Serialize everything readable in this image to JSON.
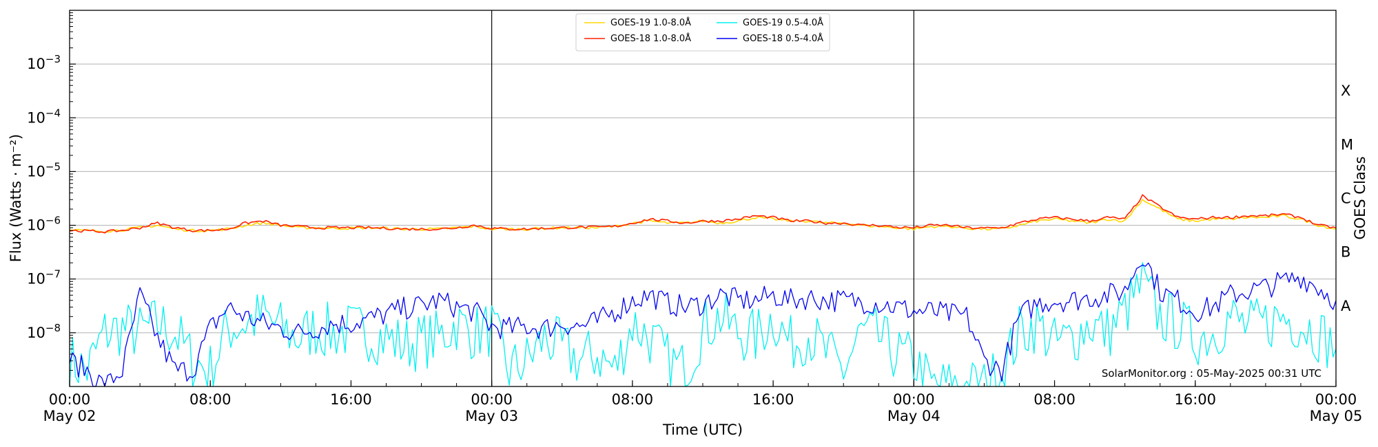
{
  "chart_data": {
    "type": "line",
    "xlabel": "Time (UTC)",
    "ylabel": "Flux (Watts · m⁻²)",
    "ylabel_right": "GOES Class",
    "yscale": "log",
    "ylim": [
      1e-09,
      0.01
    ],
    "xlim": [
      "2025-05-02 00:00",
      "2025-05-05 00:00"
    ],
    "grid": "horizontal at decades",
    "legend_position": "top-center",
    "y_ticks": [
      {
        "value": 1e-08,
        "base": "10",
        "exp": "−8"
      },
      {
        "value": 1e-07,
        "base": "10",
        "exp": "−7"
      },
      {
        "value": 1e-06,
        "base": "10",
        "exp": "−6"
      },
      {
        "value": 1e-05,
        "base": "10",
        "exp": "−5"
      },
      {
        "value": 0.0001,
        "base": "10",
        "exp": "−4"
      },
      {
        "value": 0.001,
        "base": "10",
        "exp": "−3"
      }
    ],
    "x_ticks": [
      {
        "t": "2025-05-02 00:00",
        "time": "00:00",
        "day": "May 02"
      },
      {
        "t": "2025-05-02 08:00",
        "time": "08:00",
        "day": ""
      },
      {
        "t": "2025-05-02 16:00",
        "time": "16:00",
        "day": ""
      },
      {
        "t": "2025-05-03 00:00",
        "time": "00:00",
        "day": "May 03"
      },
      {
        "t": "2025-05-03 08:00",
        "time": "08:00",
        "day": ""
      },
      {
        "t": "2025-05-03 16:00",
        "time": "16:00",
        "day": ""
      },
      {
        "t": "2025-05-04 00:00",
        "time": "00:00",
        "day": "May 04"
      },
      {
        "t": "2025-05-04 08:00",
        "time": "08:00",
        "day": ""
      },
      {
        "t": "2025-05-04 16:00",
        "time": "16:00",
        "day": ""
      },
      {
        "t": "2025-05-05 00:00",
        "time": "00:00",
        "day": "May 05"
      }
    ],
    "day_boundaries": [
      "2025-05-03 00:00",
      "2025-05-04 00:00"
    ],
    "goes_classes": [
      {
        "label": "A",
        "value": 3.16e-08
      },
      {
        "label": "B",
        "value": 3.16e-07
      },
      {
        "label": "C",
        "value": 3.16e-06
      },
      {
        "label": "M",
        "value": 3.16e-05
      },
      {
        "label": "X",
        "value": 0.000316
      }
    ],
    "x": [
      "2025-05-02 00:00",
      "2025-05-02 01:00",
      "2025-05-02 02:00",
      "2025-05-02 03:00",
      "2025-05-02 04:00",
      "2025-05-02 05:00",
      "2025-05-02 06:00",
      "2025-05-02 07:00",
      "2025-05-02 08:00",
      "2025-05-02 09:00",
      "2025-05-02 10:00",
      "2025-05-02 11:00",
      "2025-05-02 12:00",
      "2025-05-02 13:00",
      "2025-05-02 14:00",
      "2025-05-02 15:00",
      "2025-05-02 16:00",
      "2025-05-02 17:00",
      "2025-05-02 18:00",
      "2025-05-02 19:00",
      "2025-05-02 20:00",
      "2025-05-02 21:00",
      "2025-05-02 22:00",
      "2025-05-02 23:00",
      "2025-05-03 00:00",
      "2025-05-03 01:00",
      "2025-05-03 02:00",
      "2025-05-03 03:00",
      "2025-05-03 04:00",
      "2025-05-03 05:00",
      "2025-05-03 06:00",
      "2025-05-03 07:00",
      "2025-05-03 08:00",
      "2025-05-03 09:00",
      "2025-05-03 10:00",
      "2025-05-03 11:00",
      "2025-05-03 12:00",
      "2025-05-03 13:00",
      "2025-05-03 14:00",
      "2025-05-03 15:00",
      "2025-05-03 16:00",
      "2025-05-03 17:00",
      "2025-05-03 18:00",
      "2025-05-03 19:00",
      "2025-05-03 20:00",
      "2025-05-03 21:00",
      "2025-05-03 22:00",
      "2025-05-03 23:00",
      "2025-05-04 00:00",
      "2025-05-04 01:00",
      "2025-05-04 02:00",
      "2025-05-04 03:00",
      "2025-05-04 04:00",
      "2025-05-04 05:00",
      "2025-05-04 06:00",
      "2025-05-04 07:00",
      "2025-05-04 08:00",
      "2025-05-04 09:00",
      "2025-05-04 10:00",
      "2025-05-04 11:00",
      "2025-05-04 12:00",
      "2025-05-04 13:00",
      "2025-05-04 14:00",
      "2025-05-04 15:00",
      "2025-05-04 16:00",
      "2025-05-04 17:00",
      "2025-05-04 18:00",
      "2025-05-04 19:00",
      "2025-05-04 20:00",
      "2025-05-04 21:00",
      "2025-05-04 22:00",
      "2025-05-04 23:00",
      "2025-05-05 00:00"
    ],
    "series": [
      {
        "name": "GOES-19 1.0-8.0Å",
        "color": "#ffd700",
        "values": [
          8e-07,
          8e-07,
          7.8e-07,
          8.2e-07,
          9e-07,
          1e-06,
          8.5e-07,
          8e-07,
          8e-07,
          8.5e-07,
          1e-06,
          1.1e-06,
          1e-06,
          9e-07,
          9e-07,
          8.8e-07,
          8.8e-07,
          9e-07,
          8.8e-07,
          8.5e-07,
          8.5e-07,
          8.5e-07,
          9e-07,
          9.5e-07,
          8.5e-07,
          8.5e-07,
          8.5e-07,
          8.8e-07,
          9e-07,
          9e-07,
          9e-07,
          9.5e-07,
          1.1e-06,
          1.2e-06,
          1.1e-06,
          1.1e-06,
          1.2e-06,
          1.1e-06,
          1.2e-06,
          1.4e-06,
          1.3e-06,
          1.2e-06,
          1.2e-06,
          1.1e-06,
          1.1e-06,
          1e-06,
          9.5e-07,
          9e-07,
          8.5e-07,
          9.5e-07,
          9.5e-07,
          8.8e-07,
          8.5e-07,
          8.5e-07,
          1e-06,
          1.2e-06,
          1.3e-06,
          1.2e-06,
          1.1e-06,
          1.3e-06,
          1.2e-06,
          3e-06,
          2e-06,
          1.3e-06,
          1.2e-06,
          1.3e-06,
          1.3e-06,
          1.4e-06,
          1.4e-06,
          1.5e-06,
          1.3e-06,
          1e-06,
          8.5e-07
        ]
      },
      {
        "name": "GOES-18 1.0-8.0Å",
        "color": "#ff2000",
        "values": [
          8e-07,
          7.8e-07,
          7.6e-07,
          8e-07,
          9e-07,
          1.1e-06,
          9e-07,
          8e-07,
          8e-07,
          8.5e-07,
          1.1e-06,
          1.2e-06,
          1e-06,
          9.5e-07,
          9e-07,
          9e-07,
          9e-07,
          9e-07,
          8.8e-07,
          8.5e-07,
          8.5e-07,
          8.5e-07,
          9e-07,
          1e-06,
          8.8e-07,
          8.5e-07,
          8.5e-07,
          8.8e-07,
          9e-07,
          9.2e-07,
          9.2e-07,
          9.5e-07,
          1.1e-06,
          1.3e-06,
          1.2e-06,
          1.1e-06,
          1.2e-06,
          1.2e-06,
          1.3e-06,
          1.5e-06,
          1.4e-06,
          1.2e-06,
          1.2e-06,
          1.1e-06,
          1.1e-06,
          1e-06,
          1e-06,
          9.2e-07,
          9e-07,
          1e-06,
          1e-06,
          9e-07,
          8.8e-07,
          9e-07,
          1.1e-06,
          1.3e-06,
          1.4e-06,
          1.3e-06,
          1.2e-06,
          1.4e-06,
          1.3e-06,
          3.5e-06,
          2.2e-06,
          1.4e-06,
          1.3e-06,
          1.4e-06,
          1.4e-06,
          1.5e-06,
          1.5e-06,
          1.6e-06,
          1.4e-06,
          1e-06,
          9e-07
        ]
      },
      {
        "name": "GOES-19 0.5-4.0Å",
        "color": "#00f0f0",
        "values": [
          3e-09,
          2e-09,
          1e-08,
          1.2e-08,
          1e-08,
          1.5e-08,
          1e-08,
          3e-09,
          2e-09,
          1.2e-08,
          1.5e-08,
          2e-08,
          1.2e-08,
          8e-09,
          1.2e-08,
          1e-08,
          1.1e-08,
          1e-08,
          8e-09,
          6e-09,
          7e-09,
          8e-09,
          1.5e-08,
          1e-08,
          1.2e-08,
          2e-09,
          3e-09,
          8e-09,
          5e-09,
          3e-09,
          4e-09,
          2e-09,
          1.5e-08,
          8e-09,
          3e-09,
          2e-09,
          1.2e-08,
          2e-08,
          1e-08,
          8e-09,
          2e-08,
          6e-09,
          1e-08,
          4e-09,
          2e-09,
          1e-08,
          8e-09,
          4e-09,
          3e-09,
          1e-09,
          1e-09,
          1e-09,
          1e-09,
          2e-09,
          1e-08,
          1.5e-08,
          6e-09,
          8e-09,
          1.5e-08,
          1e-08,
          2.5e-08,
          8e-08,
          2e-08,
          1.5e-08,
          8e-09,
          1e-08,
          2e-08,
          1.2e-08,
          1.5e-08,
          2e-08,
          1.5e-08,
          1e-08,
          5e-09
        ]
      },
      {
        "name": "GOES-18 0.5-4.0Å",
        "color": "#0000f0",
        "values": [
          3e-09,
          2e-09,
          1e-09,
          2e-09,
          5e-08,
          8e-09,
          2e-09,
          2e-09,
          1.2e-08,
          3e-08,
          2e-08,
          1.5e-08,
          1.2e-08,
          1e-08,
          1.2e-08,
          1.5e-08,
          1.5e-08,
          1.8e-08,
          2.2e-08,
          2.8e-08,
          3.2e-08,
          4e-08,
          3e-08,
          2.5e-08,
          1.3e-08,
          1.2e-08,
          1.3e-08,
          1.2e-08,
          1.5e-08,
          1.3e-08,
          1.6e-08,
          2.5e-08,
          4e-08,
          5e-08,
          3.5e-08,
          3e-08,
          3.5e-08,
          5e-08,
          4e-08,
          4e-08,
          5e-08,
          4e-08,
          4.5e-08,
          4e-08,
          4e-08,
          3.8e-08,
          3.5e-08,
          3e-08,
          2.5e-08,
          2.5e-08,
          2.2e-08,
          2e-08,
          3e-09,
          2e-09,
          2e-08,
          3.5e-08,
          4e-08,
          4e-08,
          4.5e-08,
          5e-08,
          6e-08,
          3e-07,
          6e-08,
          4e-08,
          2.5e-08,
          3e-08,
          5e-08,
          6e-08,
          7e-08,
          9e-08,
          1.1e-07,
          7e-08,
          4e-08
        ]
      }
    ]
  },
  "credit": "SolarMonitor.org : 05-May-2025 00:31 UTC"
}
